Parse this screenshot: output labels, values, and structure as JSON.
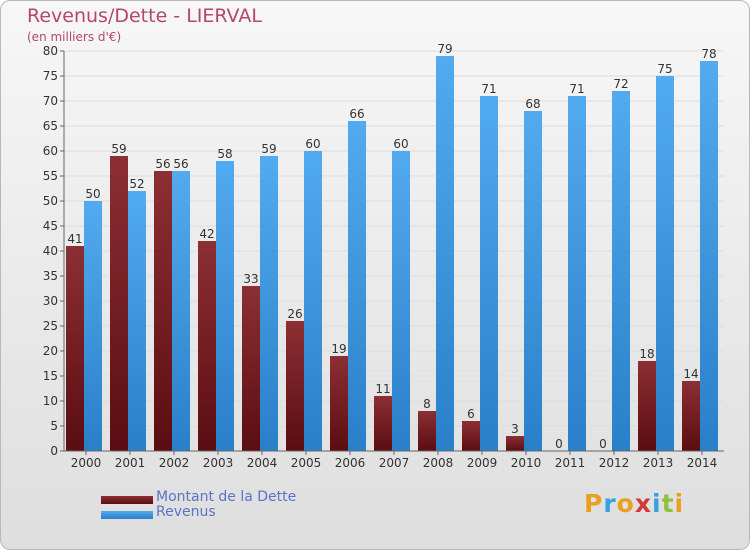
{
  "header": {
    "title": "Revenus/Dette - LIERVAL",
    "subtitle": "(en milliers d'€)"
  },
  "colors": {
    "debt": "#7a2428",
    "revenue": "#3a96e0",
    "axis_text": "#333333",
    "grid": "#dddddd"
  },
  "chart_data": {
    "type": "bar",
    "title": "Revenus/Dette - LIERVAL",
    "subtitle": "(en milliers d'€)",
    "categories": [
      "2000",
      "2001",
      "2002",
      "2003",
      "2004",
      "2005",
      "2006",
      "2007",
      "2008",
      "2009",
      "2010",
      "2011",
      "2012",
      "2013",
      "2014"
    ],
    "series": [
      {
        "name": "Montant de la Dette",
        "values": [
          41,
          59,
          56,
          42,
          33,
          26,
          19,
          11,
          8,
          6,
          3,
          0,
          0,
          18,
          14
        ]
      },
      {
        "name": "Revenus",
        "values": [
          50,
          52,
          56,
          58,
          59,
          60,
          66,
          60,
          79,
          71,
          68,
          71,
          72,
          75,
          78
        ]
      }
    ],
    "ylim": [
      0,
      80
    ],
    "yticks": [
      0,
      5,
      10,
      15,
      20,
      25,
      30,
      35,
      40,
      45,
      50,
      55,
      60,
      65,
      70,
      75,
      80
    ],
    "grid": true,
    "legend": "bottom-left"
  },
  "legend": {
    "items": [
      {
        "label": "Montant de la Dette"
      },
      {
        "label": "Revenus"
      }
    ]
  },
  "logo": {
    "letters": [
      "P",
      "r",
      "o",
      "x",
      "i",
      "t",
      "i"
    ],
    "colors": [
      "#e8a020",
      "#3aa0e0",
      "#e8a020",
      "#d03a3a",
      "#3aa0e0",
      "#90c040",
      "#e8a020"
    ]
  }
}
